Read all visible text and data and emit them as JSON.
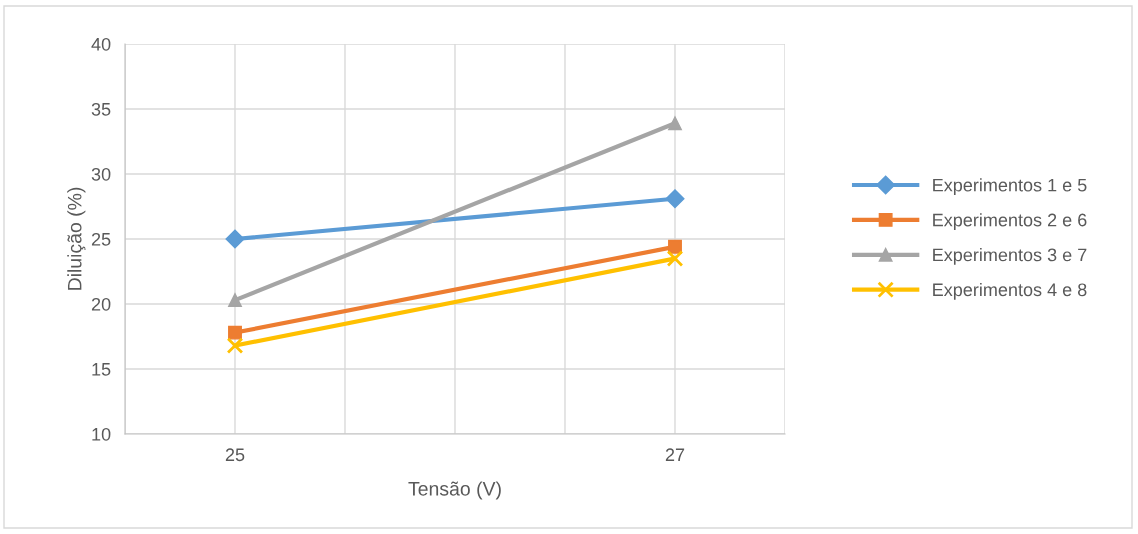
{
  "chart_data": {
    "type": "line",
    "xlabel": "Tensão (V)",
    "ylabel": "Diluição (%)",
    "x": [
      25,
      27
    ],
    "series": [
      {
        "name": "Experimentos 1 e 5",
        "color": "#5b9bd5",
        "marker": "diamond",
        "values": [
          25.0,
          28.1
        ]
      },
      {
        "name": "Experimentos 2 e 6",
        "color": "#ed7d31",
        "marker": "square",
        "values": [
          17.8,
          24.4
        ]
      },
      {
        "name": "Experimentos 3 e 7",
        "color": "#a5a5a5",
        "marker": "triangle",
        "values": [
          20.3,
          33.9
        ]
      },
      {
        "name": "Experimentos 4 e 8",
        "color": "#ffc000",
        "marker": "cross",
        "values": [
          16.8,
          23.5
        ]
      }
    ],
    "xlim": [
      24.5,
      27.5
    ],
    "xticks": [
      {
        "value": 24.5,
        "label": null
      },
      25,
      {
        "value": 25.5,
        "label": null
      },
      {
        "value": 26,
        "label": null
      },
      {
        "value": 26.5,
        "label": null
      },
      27,
      {
        "value": 27.5,
        "label": null
      }
    ],
    "ylim": [
      10,
      40
    ],
    "yticks": [
      10,
      15,
      20,
      25,
      30,
      35,
      40
    ],
    "grid": true,
    "legend": "right"
  }
}
